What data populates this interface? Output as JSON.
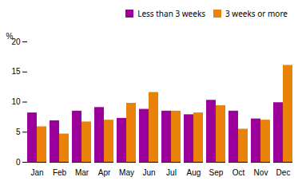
{
  "chart_data": {
    "type": "bar",
    "categories": [
      "Jan",
      "Feb",
      "Mar",
      "Apr",
      "May",
      "Jun",
      "Jul",
      "Aug",
      "Sep",
      "Oct",
      "Nov",
      "Dec"
    ],
    "series": [
      {
        "name": "Less than 3 weeks",
        "color": "#9b009b",
        "values": [
          8.2,
          6.9,
          8.5,
          9.1,
          7.3,
          8.8,
          8.5,
          7.9,
          10.3,
          8.5,
          7.2,
          9.9
        ]
      },
      {
        "name": "3 weeks or more",
        "color": "#e8820a",
        "values": [
          5.9,
          4.7,
          6.7,
          7.0,
          9.8,
          11.6,
          8.5,
          8.2,
          9.4,
          5.5,
          7.0,
          16.1
        ]
      }
    ],
    "ylabel": "%",
    "ylim": [
      0,
      20
    ],
    "yticks": [
      0,
      5,
      10,
      15,
      20
    ],
    "grid": false,
    "legend": "upper right"
  }
}
